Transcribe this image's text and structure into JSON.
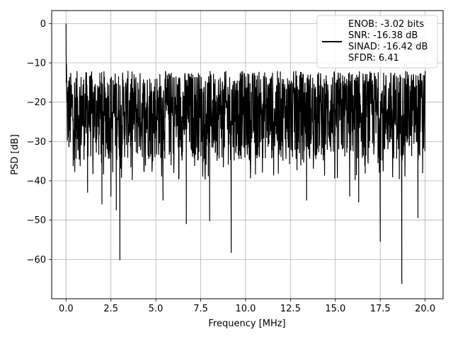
{
  "chart_data": {
    "type": "line",
    "xlabel": "Frequency [MHz]",
    "ylabel": "PSD [dB]",
    "xlim": [
      -0.8,
      21.0
    ],
    "ylim": [
      -70.0,
      3.3
    ],
    "xticks": [
      0.0,
      2.5,
      5.0,
      7.5,
      10.0,
      12.5,
      15.0,
      17.5,
      20.0
    ],
    "xtick_labels": [
      "0.0",
      "2.5",
      "5.0",
      "7.5",
      "10.0",
      "12.5",
      "15.0",
      "17.5",
      "20.0"
    ],
    "yticks": [
      0,
      -10,
      -20,
      -30,
      -40,
      -50,
      -60
    ],
    "ytick_labels": [
      "0",
      "−10",
      "−20",
      "−30",
      "−40",
      "−50",
      "−60"
    ],
    "grid": true,
    "legend": {
      "placement": "top-right",
      "entries": [
        "ENOB: -3.02 bits",
        "SNR: -16.38 dB",
        "SINAD: -16.42 dB",
        "SFDR: 6.41"
      ]
    },
    "series": [
      {
        "color": "#000000",
        "noise_floor": {
          "x_range": [
            0.0,
            20.0
          ],
          "y_band": [
            -35,
            -12
          ],
          "median": -24
        },
        "peak": {
          "x": 0.0,
          "y": 0.0
        },
        "spurs_down": [
          {
            "x": 1.2,
            "y": -43
          },
          {
            "x": 2.0,
            "y": -46
          },
          {
            "x": 2.5,
            "y": -44
          },
          {
            "x": 2.8,
            "y": -47.5
          },
          {
            "x": 3.0,
            "y": -60.2
          },
          {
            "x": 5.4,
            "y": -45
          },
          {
            "x": 6.7,
            "y": -51
          },
          {
            "x": 8.0,
            "y": -50.2
          },
          {
            "x": 9.2,
            "y": -58.3
          },
          {
            "x": 13.4,
            "y": -45
          },
          {
            "x": 15.8,
            "y": -44
          },
          {
            "x": 16.3,
            "y": -45.5
          },
          {
            "x": 17.5,
            "y": -55.5
          },
          {
            "x": 18.7,
            "y": -66.2
          },
          {
            "x": 19.6,
            "y": -49.5
          }
        ]
      }
    ]
  }
}
